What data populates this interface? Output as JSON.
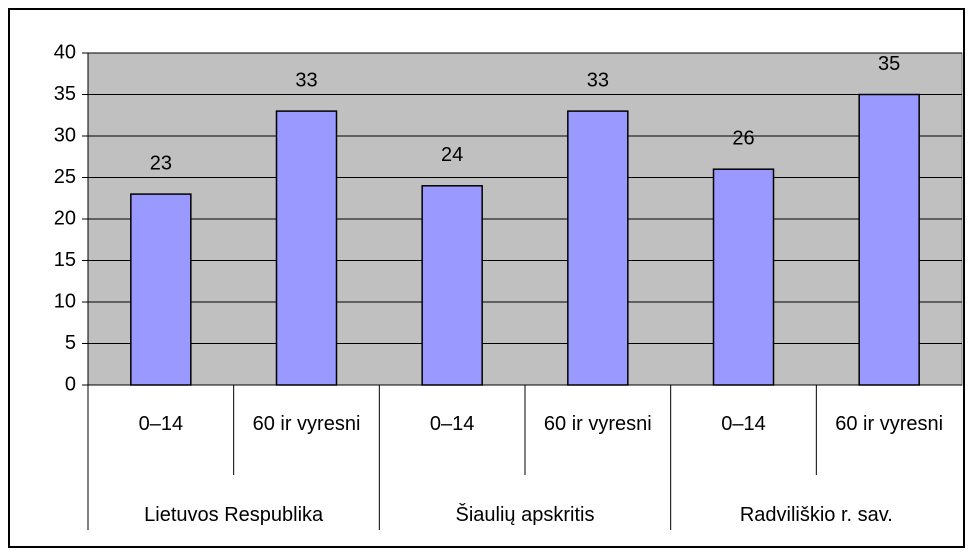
{
  "chart_data": {
    "type": "bar",
    "categories": [
      "0–14",
      "60 ir vyresni",
      "0–14",
      "60 ir vyresni",
      "0–14",
      "60 ir vyresni"
    ],
    "groups": [
      "Lietuvos Respublika",
      "Šiaulių apskritis",
      "Radviliškio r. sav."
    ],
    "values": [
      23,
      33,
      24,
      33,
      26,
      35
    ],
    "color": "#9999ff",
    "ylim": [
      0,
      40
    ],
    "yticks": [
      0,
      5,
      10,
      15,
      20,
      25,
      30,
      35,
      40
    ],
    "grid": true
  }
}
